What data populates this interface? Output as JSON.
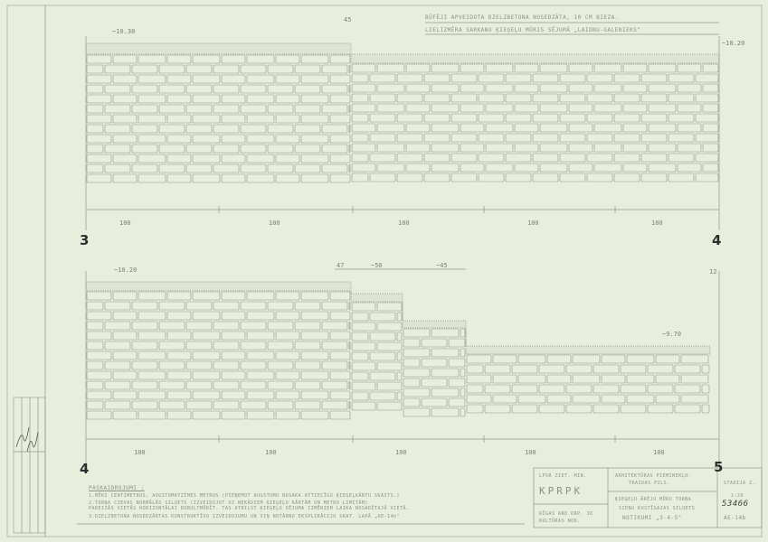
{
  "notes_top": {
    "line1": "BŪFĒJI APVEIDOTA DZELZBETONA NOSEDZĀTA, 10 CM BIEZA.",
    "line2": "LIELIZMĒRA SARKANO ĶIEĢEĻU MŪRIS SĒJUMĀ „LAIDNU-GALENIEKS\""
  },
  "upper_wall": {
    "elev_left": "~10.30",
    "elev_right": "~10.20",
    "step": "45",
    "spans": [
      "100",
      "100",
      "100",
      "100",
      "100"
    ],
    "axis_left": "3",
    "axis_right": "4"
  },
  "lower_wall": {
    "elev_left": "~10.20",
    "elev_right": "~9.70",
    "steps": [
      "47",
      "~50",
      "~45",
      "12"
    ],
    "spans": [
      "100",
      "100",
      "100",
      "100",
      "100"
    ],
    "axis_left": "4",
    "axis_right": "5"
  },
  "explanations": {
    "title": "PASKAIDROJUMI :",
    "items": [
      "1.MĒRI CENTIMETROS, AUGSTUMATZĪMES METROS (PIEŅEMOT AUGSTUMU NOSAKA ATTIECĪGO ĶIEĢEĻKĀRTU SKAITS.)",
      "2.TORŅA CIEVAS NORMĀLĀS SILUETS (IZVEIDOJOT UZ NEKĀDIEM ĶIEĢEĻU KĀRTĀM UN METRU LIMITĀM)",
      "  PAREIZĀS VIETĀS HORIZONTĀLAI DUBULTMŪRĪT. TAS ATBILST ĶIEĢEĻU SĒJUMA IZMĒRIEM LAIKA NOSADĪTAJĀ VIETĀ.",
      "3.DZELZBETONA NOSEDZĀRTAS KONSTRUKTĪVO IZVEIDOJUMU UN VIŅ NOTĀRNU EKSPLIKĀCIJU SKAT. LAPĀ „AE-14b\""
    ]
  },
  "title_block": {
    "org_line1": "LPSR ZIET. MIN.",
    "org_code": "KPRPK",
    "dept_line1": "RĪGAS ARD DRP. IK",
    "dept_line2": "KULTŪRAS NOD.",
    "project_line1": "ARHITEKTŪRAS PIEMINEKĻU-",
    "project_line2": "TRAIDAS PILS.",
    "drawing_line1": "ĶIEĢEĻU ĀRĒJO MŪRU TORŅA",
    "drawing_line2": "SIENU KUSTĪGAJAS SILUETS",
    "drawing_line3": "NOTIKUMI „3-4-5\"",
    "stage": "STADIJA Z.",
    "scale": "1:20",
    "number": "53466",
    "sheet": "AE-14b"
  },
  "colors": {
    "paper": "#e9eddc",
    "line": "#8f978c",
    "ink": "#2c302c"
  }
}
